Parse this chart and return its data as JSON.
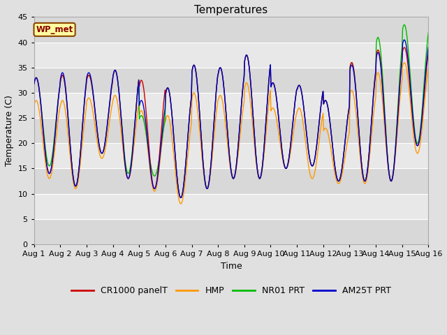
{
  "title": "Temperatures",
  "ylabel": "Temperature (C)",
  "xlabel": "Time",
  "ylim": [
    0,
    45
  ],
  "yticks": [
    0,
    5,
    10,
    15,
    20,
    25,
    30,
    35,
    40,
    45
  ],
  "xtick_labels": [
    "Aug 1",
    "Aug 2",
    "Aug 3",
    "Aug 4",
    "Aug 5",
    "Aug 6",
    "Aug 7",
    "Aug 8",
    "Aug 9",
    "Aug 10",
    "Aug 11",
    "Aug 12",
    "Aug 13",
    "Aug 14",
    "Aug 15",
    "Aug 16"
  ],
  "legend_labels": [
    "CR1000 panelT",
    "HMP",
    "NR01 PRT",
    "AM25T PRT"
  ],
  "line_colors": [
    "#CC0000",
    "#FF9900",
    "#00BB00",
    "#0000CC"
  ],
  "wp_met_label": "WP_met",
  "title_fontsize": 11,
  "axis_label_fontsize": 9,
  "tick_fontsize": 8,
  "legend_fontsize": 9,
  "cr1000_mins": [
    14.0,
    11.5,
    18.0,
    13.0,
    11.0,
    9.2,
    11.0,
    13.0,
    13.0,
    15.0,
    15.5,
    12.5,
    12.5,
    12.5,
    19.5
  ],
  "cr1000_maxs": [
    33.0,
    33.5,
    33.5,
    34.5,
    32.5,
    31.0,
    35.5,
    35.0,
    37.5,
    32.0,
    31.5,
    28.5,
    36.0,
    38.5,
    39.0
  ],
  "hmp_mins": [
    13.0,
    11.0,
    17.0,
    13.0,
    10.5,
    8.0,
    11.0,
    13.0,
    13.0,
    15.0,
    13.0,
    12.0,
    12.0,
    12.5,
    18.0
  ],
  "hmp_maxs": [
    28.5,
    28.5,
    29.0,
    29.5,
    26.5,
    25.5,
    30.0,
    29.5,
    32.0,
    27.0,
    27.0,
    23.0,
    30.5,
    34.0,
    36.0
  ],
  "nr01_mins": [
    15.5,
    11.5,
    18.0,
    14.0,
    13.5,
    9.2,
    11.0,
    13.0,
    13.0,
    15.0,
    15.5,
    12.5,
    12.5,
    12.5,
    20.0
  ],
  "nr01_maxs": [
    33.0,
    33.5,
    33.5,
    34.5,
    25.5,
    31.0,
    35.5,
    35.0,
    37.5,
    32.0,
    31.5,
    28.5,
    36.0,
    41.0,
    43.5
  ],
  "am25t_mins": [
    14.0,
    11.5,
    18.0,
    13.0,
    11.0,
    9.2,
    11.0,
    13.0,
    13.0,
    15.0,
    15.5,
    12.5,
    12.5,
    12.5,
    19.5
  ],
  "am25t_maxs": [
    33.0,
    34.0,
    34.0,
    34.5,
    28.5,
    31.0,
    35.5,
    35.0,
    37.5,
    32.0,
    31.5,
    28.5,
    35.5,
    38.0,
    40.5
  ]
}
